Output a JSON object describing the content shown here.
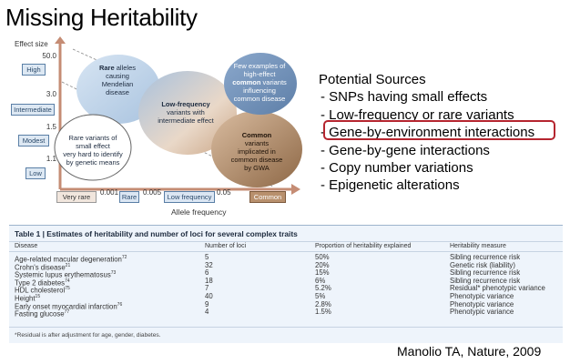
{
  "slide": {
    "title": "Missing Heritability",
    "citation": "Manolio TA, Nature, 2009"
  },
  "figure": {
    "y_axis_label": "Effect size",
    "y_ticks": [
      "50.0",
      "3.0",
      "1.5",
      "1.1"
    ],
    "y_categories": [
      "High",
      "Intermediate",
      "Modest",
      "Low"
    ],
    "x_ticks": [
      "0.001",
      "0.005",
      "0.05"
    ],
    "x_categories": [
      "Very rare",
      "Rare",
      "Low frequency",
      "Common"
    ],
    "x_axis_label": "Allele frequency",
    "bubbles": {
      "rare_alleles": {
        "bold": "Rare",
        "text1": " alleles",
        "text2": "causing",
        "text3": "Mendelian",
        "text4": "disease"
      },
      "low_frequency": {
        "bold": "Low-frequency",
        "text1": "variants with",
        "text2": "intermediate effect"
      },
      "few_examples": {
        "text1": "Few examples of",
        "text2": "high-effect",
        "bold": "common",
        "text3": " variants",
        "text4": "influencing",
        "text5": "common disease"
      },
      "rare_small": {
        "text1": "Rare variants of",
        "text2": "small effect",
        "text3": "very hard to identify",
        "text4": "by genetic means"
      },
      "common": {
        "bold": "Common",
        "text1": "variants",
        "text2": "implicated in",
        "text3": "common disease",
        "text4": "by GWA"
      }
    },
    "colors": {
      "blue_bubble": "#b9cfe6",
      "brown_bubble": "#a9825f",
      "axis": "#c58c74"
    }
  },
  "sources": {
    "title": "Potential Sources",
    "items": [
      "- SNPs having small effects",
      "- Low-frequency or rare variants",
      "- Gene-by-environment interactions",
      "- Gene-by-gene interactions",
      "- Copy number variations",
      "- Epigenetic alterations"
    ],
    "highlight_color": "#b5252f"
  },
  "table": {
    "label": "Table 1",
    "caption": " | Estimates of heritability and number of loci for several complex traits",
    "headers": [
      "Disease",
      "Number of loci",
      "Proportion of heritability explained",
      "Heritability measure"
    ],
    "rows": [
      {
        "disease": "Age-related macular degeneration",
        "ref": "72",
        "loci": "5",
        "proportion": "50%",
        "measure": "Sibling recurrence risk"
      },
      {
        "disease": "Crohn's disease",
        "ref": "21",
        "loci": "32",
        "proportion": "20%",
        "measure": "Genetic risk (liability)"
      },
      {
        "disease": "Systemic lupus erythematosus",
        "ref": "73",
        "loci": "6",
        "proportion": "15%",
        "measure": "Sibling recurrence risk"
      },
      {
        "disease": "Type 2 diabetes",
        "ref": "74",
        "loci": "18",
        "proportion": "6%",
        "measure": "Sibling recurrence risk"
      },
      {
        "disease": "HDL cholesterol",
        "ref": "75",
        "loci": "7",
        "proportion": "5.2%",
        "measure": "Residual* phenotypic variance"
      },
      {
        "disease": "Height",
        "ref": "15",
        "loci": "40",
        "proportion": "5%",
        "measure": "Phenotypic variance"
      },
      {
        "disease": "Early onset myocardial infarction",
        "ref": "76",
        "loci": "9",
        "proportion": "2.8%",
        "measure": "Phenotypic variance"
      },
      {
        "disease": "Fasting glucose",
        "ref": "77",
        "loci": "4",
        "proportion": "1.5%",
        "measure": "Phenotypic variance"
      }
    ],
    "footnote": "*Residual is after adjustment for age, gender, diabetes."
  }
}
